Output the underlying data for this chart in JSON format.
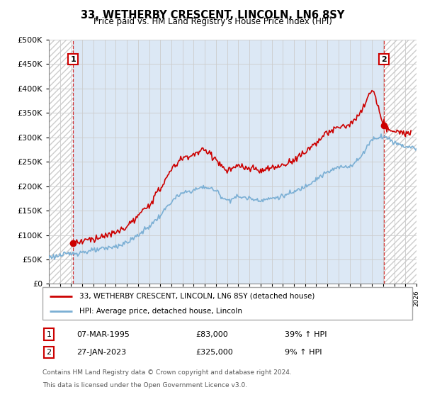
{
  "title1": "33, WETHERBY CRESCENT, LINCOLN, LN6 8SY",
  "title2": "Price paid vs. HM Land Registry's House Price Index (HPI)",
  "ytick_values": [
    0,
    50000,
    100000,
    150000,
    200000,
    250000,
    300000,
    350000,
    400000,
    450000,
    500000
  ],
  "xlim": [
    1993,
    2026
  ],
  "ylim": [
    0,
    500000
  ],
  "hpi_color": "#7bafd4",
  "price_color": "#cc0000",
  "transaction1_x": 1995.17,
  "transaction1_price": 83000,
  "transaction2_x": 2023.07,
  "transaction2_price": 325000,
  "legend_line1": "33, WETHERBY CRESCENT, LINCOLN, LN6 8SY (detached house)",
  "legend_line2": "HPI: Average price, detached house, Lincoln",
  "table_row1": [
    "1",
    "07-MAR-1995",
    "£83,000",
    "39% ↑ HPI"
  ],
  "table_row2": [
    "2",
    "27-JAN-2023",
    "£325,000",
    "9% ↑ HPI"
  ],
  "footnote1": "Contains HM Land Registry data © Crown copyright and database right 2024.",
  "footnote2": "This data is licensed under the Open Government Licence v3.0.",
  "hpi_ctrl_x": [
    1993,
    1994,
    1995,
    1996,
    1997,
    1998,
    1999,
    2000,
    2001,
    2002,
    2003,
    2004,
    2005,
    2006,
    2007,
    2008,
    2009,
    2010,
    2011,
    2012,
    2013,
    2014,
    2015,
    2016,
    2017,
    2018,
    2019,
    2020,
    2021,
    2022,
    2023,
    2024,
    2025,
    2026
  ],
  "hpi_ctrl_y": [
    55000,
    58000,
    62000,
    65000,
    68000,
    72000,
    77000,
    85000,
    100000,
    118000,
    140000,
    168000,
    185000,
    192000,
    198000,
    190000,
    172000,
    178000,
    175000,
    172000,
    175000,
    180000,
    188000,
    200000,
    215000,
    228000,
    238000,
    242000,
    260000,
    295000,
    302000,
    290000,
    282000,
    278000
  ],
  "price_ctrl_x": [
    1995.17,
    1996,
    1997,
    1998,
    1999,
    2000,
    2001,
    2002,
    2003,
    2004,
    2005,
    2006,
    2007,
    2008,
    2009,
    2010,
    2011,
    2012,
    2013,
    2014,
    2015,
    2016,
    2017,
    2018,
    2019,
    2020,
    2021,
    2022,
    2023.07,
    2024,
    2025
  ],
  "price_ctrl_y": [
    83000,
    88000,
    93000,
    98000,
    105000,
    118000,
    138000,
    163000,
    195000,
    233000,
    257000,
    265000,
    273000,
    255000,
    232000,
    240000,
    236000,
    232000,
    237000,
    243000,
    255000,
    270000,
    290000,
    308000,
    320000,
    327000,
    350000,
    395000,
    325000,
    312000,
    308000
  ]
}
